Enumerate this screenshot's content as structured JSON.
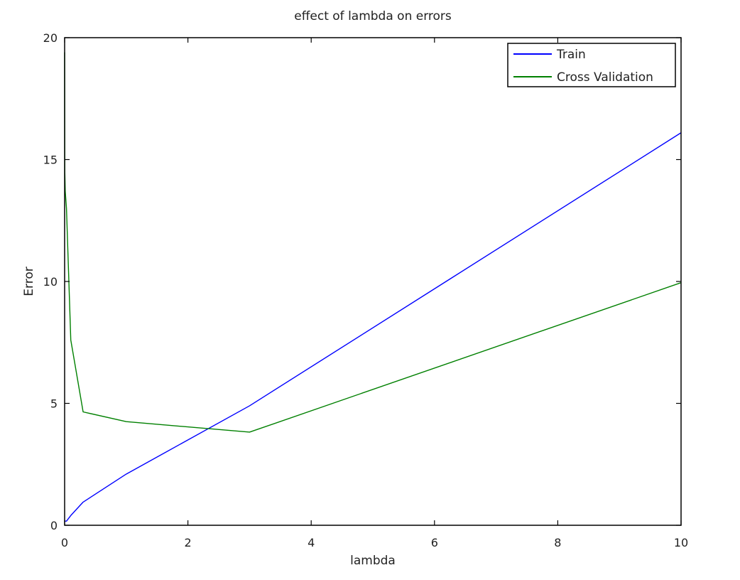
{
  "chart_data": {
    "type": "line",
    "title": "effect of lambda on errors",
    "xlabel": "lambda",
    "ylabel": "Error",
    "xlim": [
      0,
      10
    ],
    "ylim": [
      0,
      20
    ],
    "xticks": [
      0,
      2,
      4,
      6,
      8,
      10
    ],
    "xtick_labels": [
      "0",
      "2",
      "4",
      "6",
      "8",
      "10"
    ],
    "yticks": [
      0,
      5,
      10,
      15,
      20
    ],
    "ytick_labels": [
      "0",
      "5",
      "10",
      "15",
      "20"
    ],
    "grid": false,
    "legend_position": "top-right",
    "x": [
      0,
      0.001,
      0.003,
      0.01,
      0.03,
      0.1,
      0.3,
      1,
      3,
      10
    ],
    "series": [
      {
        "name": "Train",
        "color": "#0000ff",
        "values": [
          0.17,
          0.17,
          0.17,
          0.17,
          0.17,
          0.4,
          0.95,
          2.1,
          4.9,
          16.1
        ]
      },
      {
        "name": "Cross Validation",
        "color": "#008000",
        "values": [
          19.4,
          17.0,
          14.5,
          13.7,
          13.0,
          7.6,
          4.65,
          4.25,
          3.82,
          9.95
        ]
      }
    ]
  }
}
